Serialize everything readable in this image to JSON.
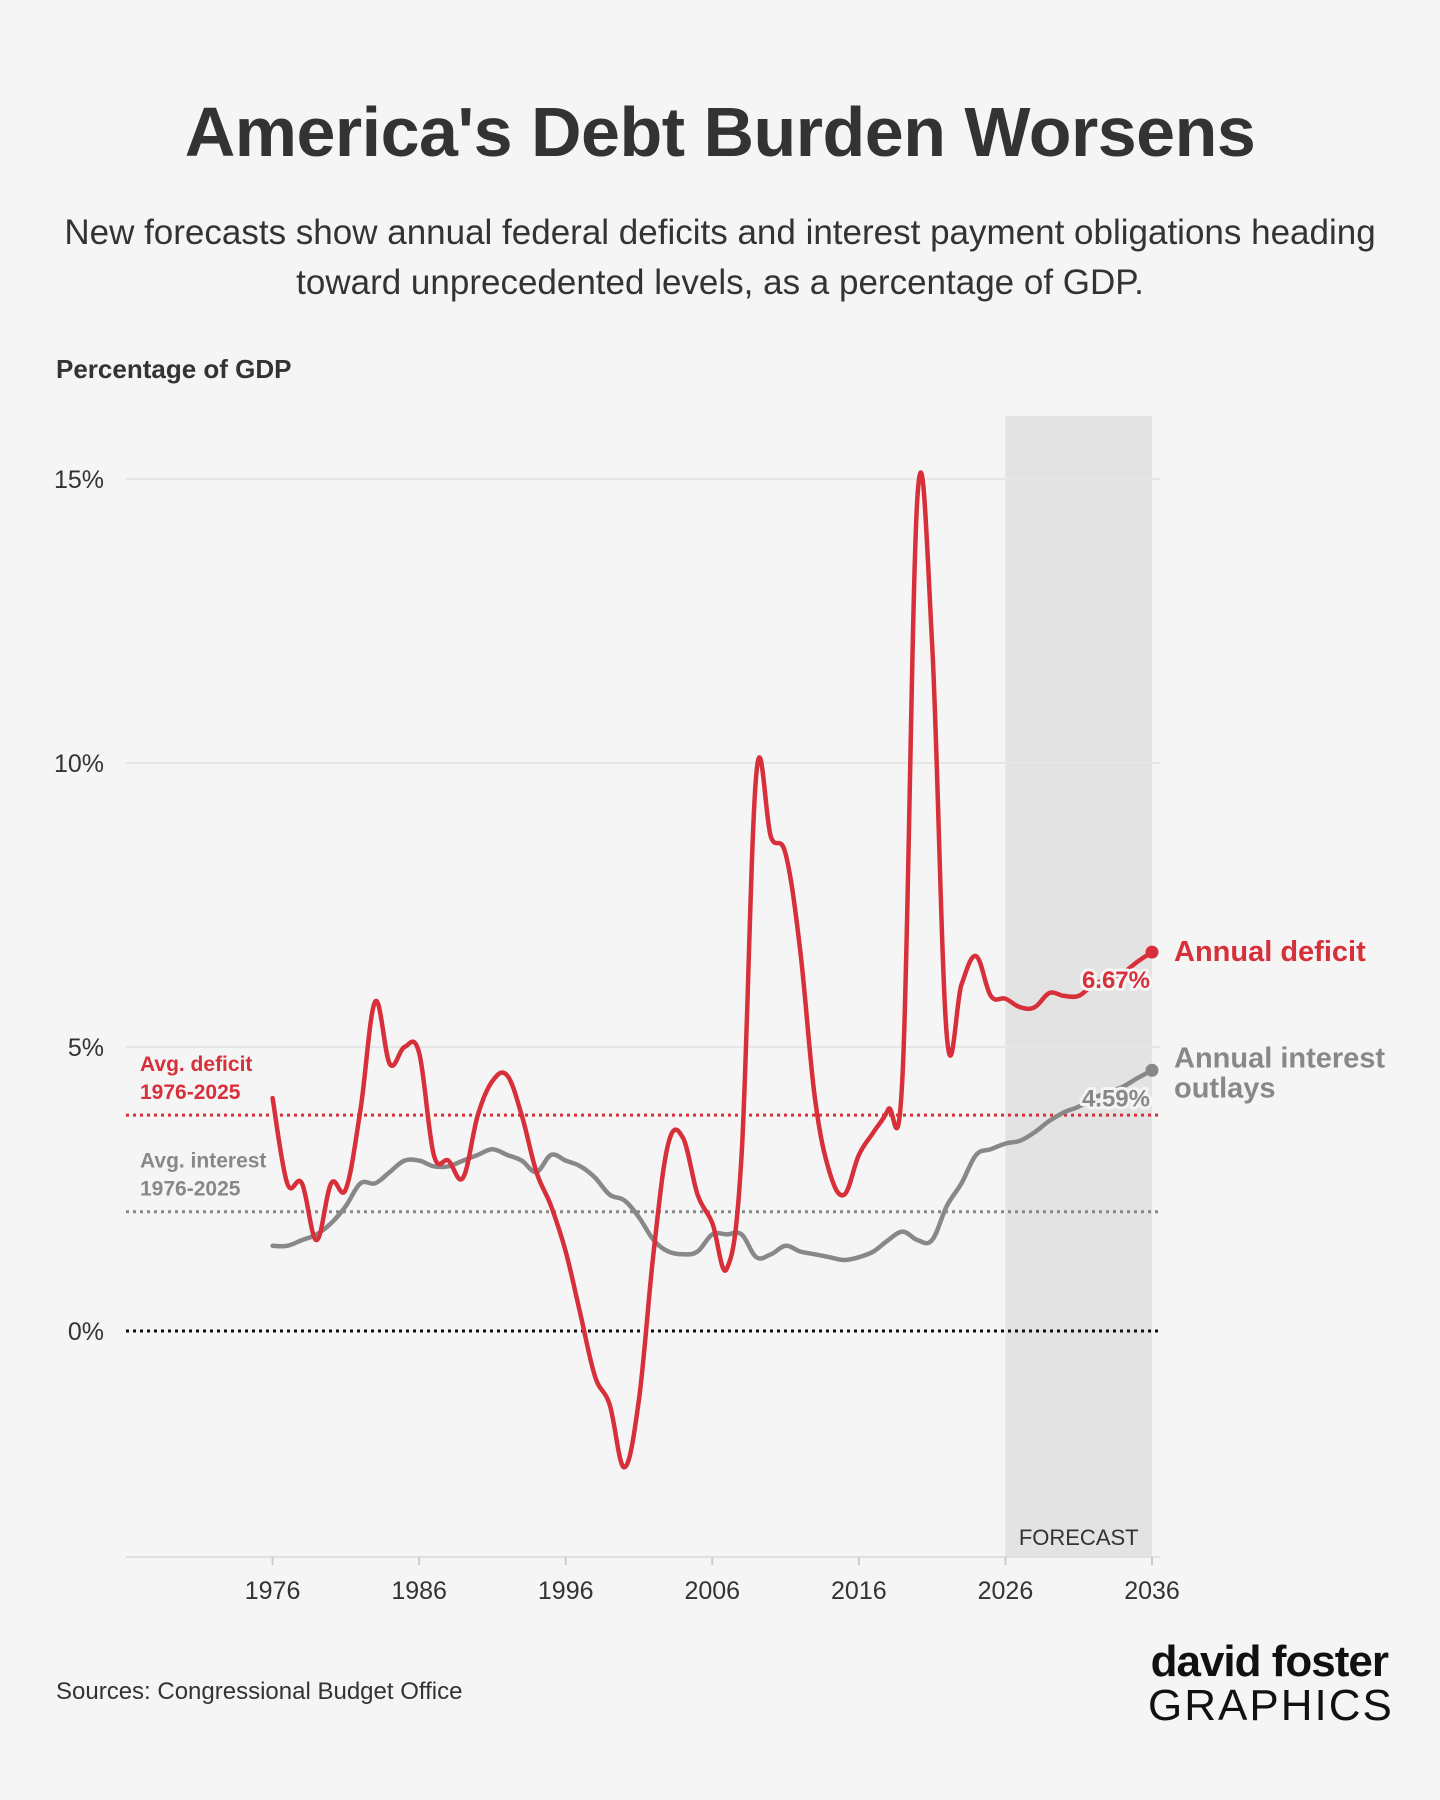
{
  "title": "America's Debt Burden Worsens",
  "subtitle": "New forecasts show annual federal deficits and interest payment obligations heading toward unprecedented levels, as a percentage of GDP.",
  "source": "Sources: Congressional Budget Office",
  "logo": {
    "line1": "david foster",
    "line2": "GRAPHICS"
  },
  "colors": {
    "deficit": "#d7303a",
    "interest": "#888888",
    "forecast_band": "#e3e3e3",
    "zero": "#111111"
  },
  "chart_data": {
    "type": "line",
    "ylabel": "Percentage of GDP",
    "ylim": [
      -4,
      16
    ],
    "yticks": [
      0,
      5,
      10,
      15
    ],
    "ytick_labels": [
      "0%",
      "5%",
      "10%",
      "15%"
    ],
    "xlim": [
      1966,
      2036
    ],
    "xticks": [
      1976,
      1986,
      1996,
      2006,
      2016,
      2026,
      2036
    ],
    "forecast": {
      "start": 2026,
      "end": 2036,
      "label": "FORECAST"
    },
    "references": [
      {
        "id": "avg_deficit",
        "label_line1": "Avg. deficit",
        "label_line2": "1976-2025",
        "value": 3.8
      },
      {
        "id": "avg_interest",
        "label_line1": "Avg. interest",
        "label_line2": "1976-2025",
        "value": 2.1
      }
    ],
    "series": [
      {
        "id": "deficit",
        "name_line1": "Annual deficit",
        "name_line2": "",
        "end_label": "6.67%",
        "x": [
          1976,
          1977,
          1978,
          1979,
          1980,
          1981,
          1982,
          1983,
          1984,
          1985,
          1986,
          1987,
          1988,
          1989,
          1990,
          1991,
          1992,
          1993,
          1994,
          1995,
          1996,
          1997,
          1998,
          1999,
          2000,
          2001,
          2002,
          2003,
          2004,
          2005,
          2006,
          2007,
          2008,
          2009,
          2010,
          2011,
          2012,
          2013,
          2014,
          2015,
          2016,
          2017,
          2018,
          2019,
          2020,
          2021,
          2022,
          2023,
          2024,
          2025,
          2026,
          2027,
          2028,
          2029,
          2030,
          2031,
          2032,
          2033,
          2034,
          2035,
          2036
        ],
        "values": [
          4.1,
          2.6,
          2.6,
          1.6,
          2.6,
          2.5,
          3.9,
          5.8,
          4.7,
          5.0,
          4.9,
          3.1,
          3.0,
          2.7,
          3.8,
          4.4,
          4.5,
          3.8,
          2.8,
          2.2,
          1.4,
          0.3,
          -0.8,
          -1.3,
          -2.4,
          -1.2,
          1.4,
          3.3,
          3.4,
          2.4,
          1.9,
          1.1,
          3.1,
          9.8,
          8.7,
          8.4,
          6.7,
          4.1,
          2.8,
          2.4,
          3.1,
          3.5,
          3.9,
          4.6,
          14.7,
          12.1,
          5.2,
          6.1,
          6.6,
          5.9,
          5.85,
          5.7,
          5.7,
          5.95,
          5.9,
          5.9,
          6.1,
          6.2,
          6.3,
          6.5,
          6.67
        ]
      },
      {
        "id": "interest",
        "name_line1": "Annual interest",
        "name_line2": "outlays",
        "end_label": "4.59%",
        "x": [
          1976,
          1977,
          1978,
          1979,
          1980,
          1981,
          1982,
          1983,
          1984,
          1985,
          1986,
          1987,
          1988,
          1989,
          1990,
          1991,
          1992,
          1993,
          1994,
          1995,
          1996,
          1997,
          1998,
          1999,
          2000,
          2001,
          2002,
          2003,
          2004,
          2005,
          2006,
          2007,
          2008,
          2009,
          2010,
          2011,
          2012,
          2013,
          2014,
          2015,
          2016,
          2017,
          2018,
          2019,
          2020,
          2021,
          2022,
          2023,
          2024,
          2025,
          2026,
          2027,
          2028,
          2029,
          2030,
          2031,
          2032,
          2033,
          2034,
          2035,
          2036
        ],
        "values": [
          1.5,
          1.5,
          1.6,
          1.7,
          1.9,
          2.2,
          2.6,
          2.6,
          2.8,
          3.0,
          3.0,
          2.9,
          2.9,
          3.0,
          3.1,
          3.2,
          3.1,
          3.0,
          2.8,
          3.1,
          3.0,
          2.9,
          2.7,
          2.4,
          2.3,
          2.0,
          1.6,
          1.4,
          1.35,
          1.4,
          1.7,
          1.7,
          1.7,
          1.3,
          1.35,
          1.5,
          1.4,
          1.35,
          1.3,
          1.25,
          1.3,
          1.4,
          1.6,
          1.75,
          1.6,
          1.6,
          2.2,
          2.6,
          3.1,
          3.2,
          3.3,
          3.35,
          3.5,
          3.7,
          3.85,
          3.95,
          4.1,
          4.2,
          4.3,
          4.45,
          4.59
        ]
      }
    ]
  }
}
